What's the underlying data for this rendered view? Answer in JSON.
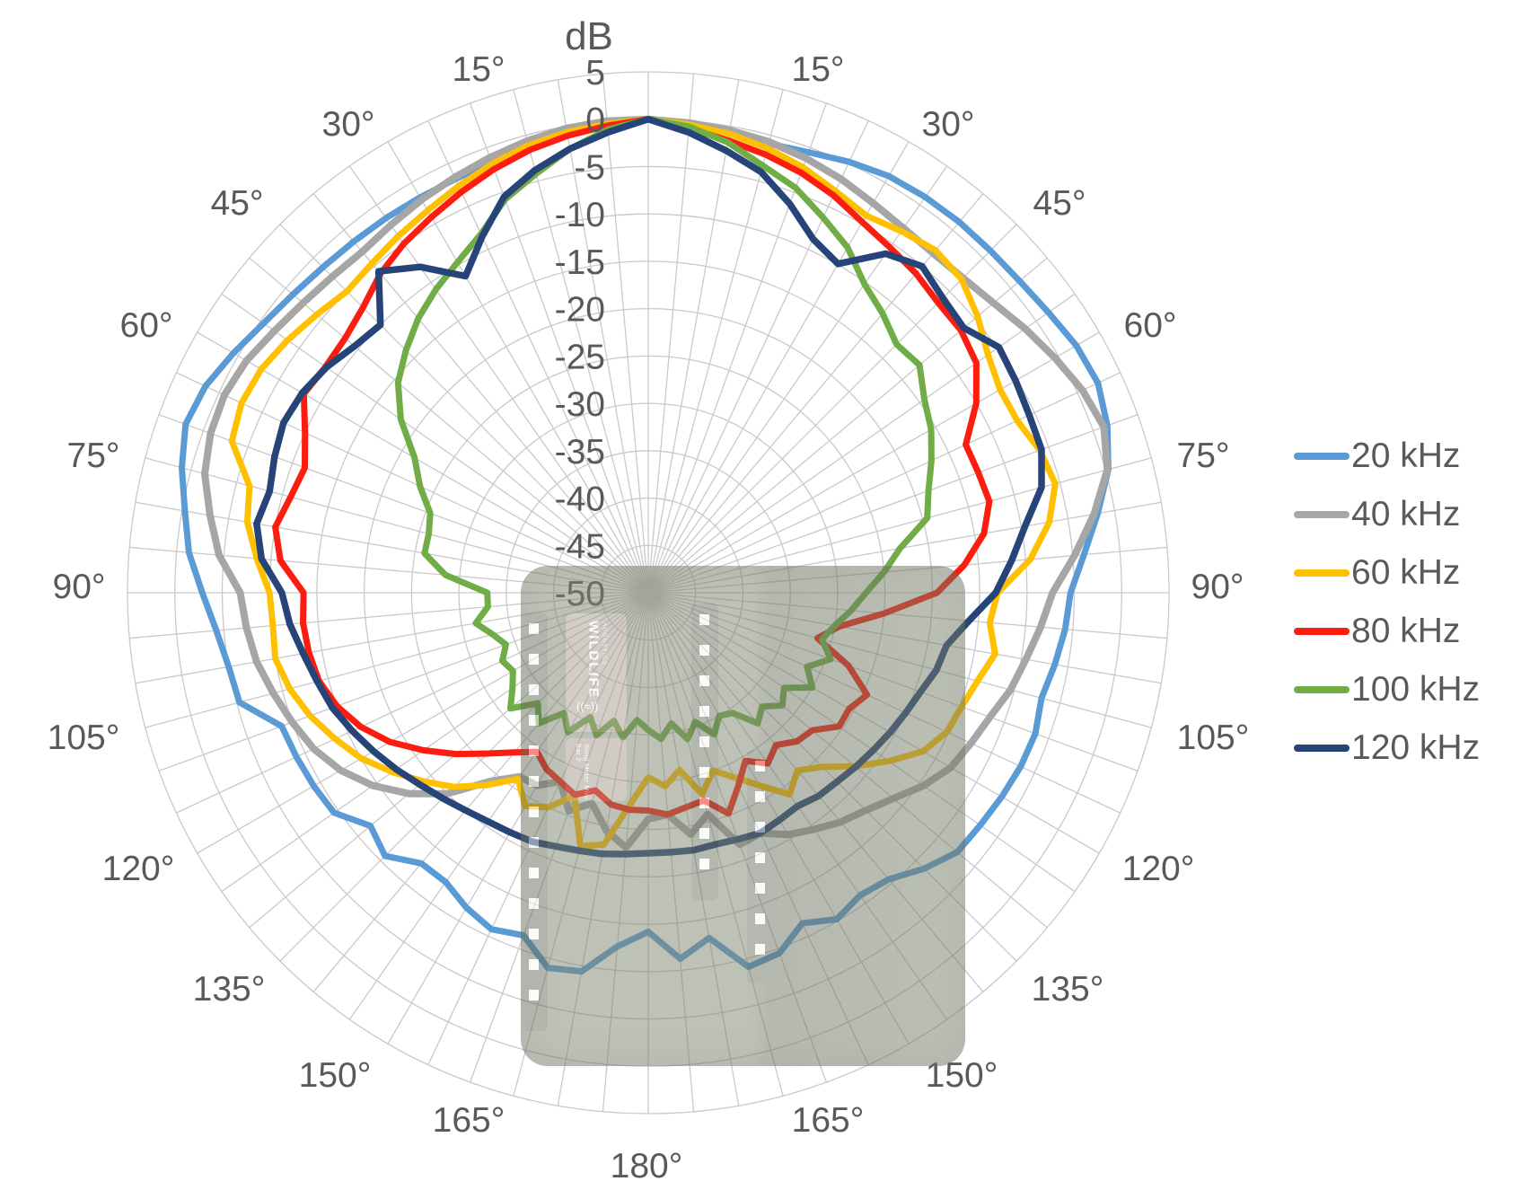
{
  "chart_data": {
    "type": "line",
    "subtype": "polar-radar-directivity",
    "title": "dB",
    "radial_axis": {
      "title": "dB",
      "min": -50,
      "max": 5,
      "step": 5,
      "tick_labels": [
        "5",
        "0",
        "-5",
        "-10",
        "-15",
        "-20",
        "-25",
        "-30",
        "-35",
        "-40",
        "-45",
        "-50"
      ]
    },
    "angle_axis": {
      "unit": "degrees",
      "step_deg": 5,
      "grid_every_deg": 5,
      "label_every_deg": 15,
      "tick_labels": [
        "15°",
        "30°",
        "45°",
        "60°",
        "75°",
        "90°",
        "105°",
        "120°",
        "135°",
        "150°",
        "165°",
        "180°"
      ],
      "note": "0° at top; labels 15°-165° mirrored on both sides, 180° at bottom"
    },
    "grid": true,
    "legend_position": "right",
    "angle_order": "values index i = i*5 degrees clockwise from top; 0-36 = right side 0-180, 37-71 = left side 175-5",
    "series": [
      {
        "name": "20 kHz",
        "color": "#5B9BD5",
        "width": 7,
        "values": [
          0,
          -0.3,
          -0.6,
          -0.9,
          -0.5,
          0.2,
          0.8,
          1.0,
          1.1,
          1.1,
          1.2,
          1.6,
          2.2,
          2.4,
          1.6,
          0.3,
          -1.8,
          -3.8,
          -5.4,
          -5.8,
          -6.4,
          -7.0,
          -6.5,
          -6.6,
          -6.9,
          -7.2,
          -7.4,
          -8.8,
          -10.5,
          -11.0,
          -10.2,
          -11.5,
          -9.5,
          -9.1,
          -13.0,
          -11.2,
          -14.2,
          -12.5,
          -9.4,
          -9.0,
          -11.5,
          -10.8,
          -11.6,
          -12.7,
          -12.7,
          -10.7,
          -11.7,
          -9.5,
          -9.2,
          -9.0,
          -8.8,
          -5.3,
          -5.0,
          -4.2,
          -2.9,
          -1.3,
          -0.3,
          1.0,
          2.0,
          1.6,
          0.6,
          -0.4,
          -1.0,
          -1.4,
          -1.6,
          -1.7,
          -1.8,
          -1.8,
          -1.6,
          -1.3,
          -0.9,
          -0.4
        ]
      },
      {
        "name": "40 kHz",
        "color": "#A6A6A6",
        "width": 8,
        "values": [
          0,
          -0.2,
          -0.4,
          -0.7,
          -1.2,
          -1.8,
          -2.5,
          -3.0,
          -3.2,
          -3.0,
          -2.4,
          -1.4,
          -0.4,
          0.6,
          1.2,
          0.2,
          -2.2,
          -4.8,
          -7.3,
          -8.4,
          -9.5,
          -10.4,
          -11.6,
          -12.4,
          -13.1,
          -14.5,
          -16.2,
          -17.5,
          -18.4,
          -19.5,
          -20.5,
          -22.0,
          -21.7,
          -25.8,
          -24.1,
          -26.5,
          -26.1,
          -23.0,
          -24.5,
          -27.0,
          -25.5,
          -28.0,
          -26.5,
          -26.3,
          -24.0,
          -20.0,
          -17.0,
          -14.5,
          -12.5,
          -11.0,
          -10.0,
          -9.0,
          -8.0,
          -7.4,
          -6.9,
          -4.5,
          -3.0,
          -1.5,
          -0.8,
          -0.6,
          -1.0,
          -1.8,
          -2.4,
          -2.8,
          -3.0,
          -2.6,
          -2.1,
          -1.6,
          -1.1,
          -0.6,
          -0.2,
          0.0
        ]
      },
      {
        "name": "60 kHz",
        "color": "#FFC000",
        "width": 7,
        "values": [
          0,
          -0.4,
          -0.8,
          -1.4,
          -2.2,
          -3.2,
          -4.0,
          -3.4,
          -2.8,
          -3.2,
          -4.6,
          -6.2,
          -7.1,
          -7.0,
          -6.0,
          -5.5,
          -7.0,
          -9.5,
          -13.1,
          -13.8,
          -12.8,
          -14.0,
          -14.8,
          -15.2,
          -16.5,
          -19.0,
          -21.5,
          -24.0,
          -25.5,
          -24.0,
          -26.5,
          -28.5,
          -30.0,
          -28.0,
          -31.0,
          -29.5,
          -30.5,
          -27.5,
          -23.0,
          -22.3,
          -27.2,
          -25.0,
          -24.0,
          -26.0,
          -23.5,
          -21.0,
          -19.0,
          -17.0,
          -15.0,
          -13.5,
          -12.0,
          -10.8,
          -10.0,
          -10.2,
          -10.0,
          -8.5,
          -7.0,
          -6.4,
          -3.2,
          -2.6,
          -2.8,
          -3.5,
          -4.3,
          -5.0,
          -4.6,
          -4.0,
          -3.4,
          -2.6,
          -1.8,
          -1.1,
          -0.6,
          -0.3
        ]
      },
      {
        "name": "80 kHz",
        "color": "#FC1C10",
        "width": 7,
        "values": [
          0,
          -0.8,
          -1.5,
          -2.1,
          -2.8,
          -3.7,
          -4.8,
          -5.5,
          -6.0,
          -6.7,
          -6.9,
          -7.7,
          -10.0,
          -13.0,
          -12.9,
          -12.7,
          -14.0,
          -16.5,
          -19.5,
          -25.0,
          -29.5,
          -31.5,
          -27.5,
          -24.5,
          -25.5,
          -25.4,
          -27.4,
          -27.8,
          -29.0,
          -28.0,
          -29.5,
          -27.5,
          -25.2,
          -27.3,
          -27.0,
          -26.5,
          -27.0,
          -27.0,
          -27.3,
          -28.4,
          -27.3,
          -28.0,
          -28.5,
          -29.5,
          -28.0,
          -26.0,
          -23.5,
          -21.0,
          -18.5,
          -16.5,
          -15.0,
          -14.0,
          -13.6,
          -13.4,
          -13.6,
          -11.0,
          -10.0,
          -10.9,
          -11.4,
          -10.0,
          -8.0,
          -8.4,
          -8.2,
          -7.4,
          -6.0,
          -5.0,
          -4.2,
          -3.3,
          -2.4,
          -1.6,
          -1.0,
          -0.5
        ]
      },
      {
        "name": "100 kHz",
        "color": "#70AD47",
        "width": 7,
        "values": [
          0,
          -0.6,
          -1.7,
          -3.3,
          -4.5,
          -6.3,
          -7.9,
          -10.2,
          -11.5,
          -12.9,
          -12.6,
          -14.4,
          -15.5,
          -17.0,
          -18.5,
          -19.5,
          -23.0,
          -25.0,
          -27.0,
          -28.5,
          -30.0,
          -31.0,
          -29.5,
          -31.5,
          -30.0,
          -32.5,
          -31.5,
          -33.0,
          -32.0,
          -34.5,
          -35.0,
          -33.5,
          -35.5,
          -34.0,
          -36.0,
          -34.5,
          -35.5,
          -36.5,
          -34.5,
          -36.0,
          -34.0,
          -35.5,
          -33.0,
          -34.5,
          -32.0,
          -33.5,
          -31.0,
          -32.5,
          -33.5,
          -33.0,
          -34.0,
          -33.0,
          -31.5,
          -33.0,
          -33.0,
          -28.5,
          -26.0,
          -26.0,
          -25.5,
          -23.4,
          -21.5,
          -18.1,
          -15.5,
          -13.8,
          -12.2,
          -10.9,
          -9.7,
          -8.2,
          -5.8,
          -4.2,
          -2.4,
          -0.9
        ]
      },
      {
        "name": "120 kHz",
        "color": "#264478",
        "width": 7.5,
        "values": [
          0,
          -1.2,
          -2.6,
          -4.0,
          -6.3,
          -8.8,
          -9.9,
          -6.3,
          -5.0,
          -6.0,
          -6.5,
          -4.8,
          -5.2,
          -5.6,
          -5.8,
          -7.0,
          -9.6,
          -11.5,
          -13.3,
          -16.0,
          -18.0,
          -18.5,
          -19.4,
          -20.0,
          -20.5,
          -21.0,
          -21.4,
          -21.8,
          -22.0,
          -22.5,
          -22.3,
          -22.0,
          -22.3,
          -22.5,
          -22.4,
          -22.5,
          -22.5,
          -22.3,
          -22.0,
          -21.8,
          -21.5,
          -21.0,
          -20.8,
          -20.5,
          -20.0,
          -19.3,
          -18.5,
          -17.5,
          -16.5,
          -15.5,
          -14.5,
          -13.8,
          -13.0,
          -12.0,
          -11.3,
          -9.0,
          -8.0,
          -8.6,
          -8.0,
          -7.5,
          -7.8,
          -8.5,
          -9.5,
          -10.0,
          -5.7,
          -8.0,
          -11.4,
          -8.5,
          -5.5,
          -3.8,
          -2.4,
          -1.2
        ]
      }
    ]
  },
  "legend": {
    "items": [
      {
        "label": "20 kHz",
        "color": "#5B9BD5"
      },
      {
        "label": "40 kHz",
        "color": "#A6A6A6"
      },
      {
        "label": "60 kHz",
        "color": "#FFC000"
      },
      {
        "label": "80 kHz",
        "color": "#FC1C10"
      },
      {
        "label": "100 kHz",
        "color": "#70AD47"
      },
      {
        "label": "120 kHz",
        "color": "#264478"
      }
    ]
  },
  "watermark": {
    "brand_line1": "WILDLIFE",
    "brand_line2": "ACOUSTICS",
    "logo_glyph": "((≈))",
    "product_line1": "Song Meter",
    "product_line2": "Mini Bat 2"
  },
  "colors": {
    "grid": "#C9C9C9",
    "text": "#595959",
    "background": "#FFFFFF"
  }
}
